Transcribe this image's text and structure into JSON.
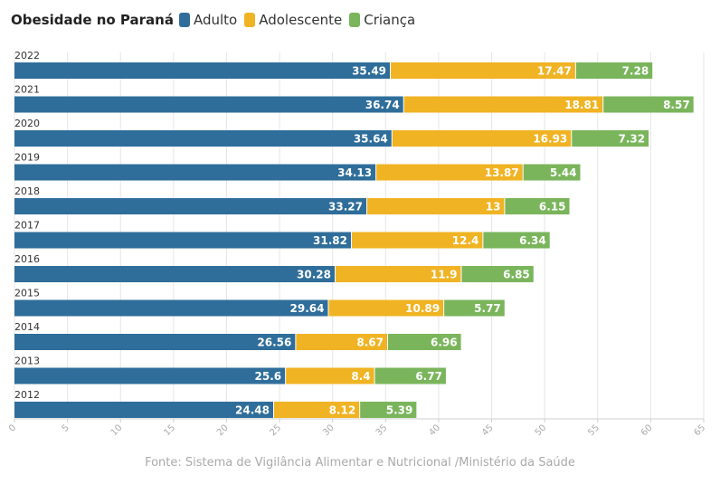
{
  "legend": {
    "title": "Obesidade no Paraná",
    "items": [
      {
        "label": "Adulto",
        "color": "#2f6e9a"
      },
      {
        "label": "Adolescente",
        "color": "#f0b323"
      },
      {
        "label": "Criança",
        "color": "#7ab55c"
      }
    ]
  },
  "source": "Fonte: Sistema de Vigilância Alimentar e Nutricional /Ministério da Saúde",
  "chart_data": {
    "type": "bar",
    "orientation": "horizontal",
    "stacked": true,
    "categories": [
      "2022",
      "2021",
      "2020",
      "2019",
      "2018",
      "2017",
      "2016",
      "2015",
      "2014",
      "2013",
      "2012"
    ],
    "series": [
      {
        "name": "Adulto",
        "color": "#2f6e9a",
        "values": [
          35.49,
          36.74,
          35.64,
          34.13,
          33.27,
          31.82,
          30.28,
          29.64,
          26.56,
          25.6,
          24.48
        ]
      },
      {
        "name": "Adolescente",
        "color": "#f0b323",
        "values": [
          17.47,
          18.81,
          16.93,
          13.87,
          13,
          12.4,
          11.9,
          10.89,
          8.67,
          8.4,
          8.12
        ]
      },
      {
        "name": "Criança",
        "color": "#7ab55c",
        "values": [
          7.28,
          8.57,
          7.32,
          5.44,
          6.15,
          6.34,
          6.85,
          5.77,
          6.96,
          6.77,
          5.39
        ]
      }
    ],
    "xlim": [
      0,
      65
    ],
    "xticks": [
      0,
      5,
      10,
      15,
      20,
      25,
      30,
      35,
      40,
      45,
      50,
      55,
      60,
      65
    ],
    "grid": true,
    "legend_position": "top-left"
  }
}
